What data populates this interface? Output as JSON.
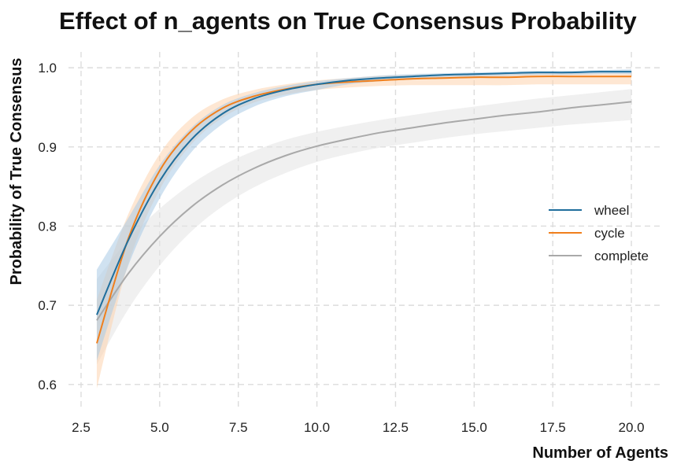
{
  "chart_data": {
    "type": "line",
    "title": "Effect of n_agents on True Consensus Probability",
    "xlabel": "Number of Agents",
    "ylabel": "Probability of True Consensus",
    "xlim": [
      2.1,
      20.9
    ],
    "ylim": [
      0.57,
      1.02
    ],
    "xticks": [
      2.5,
      5.0,
      7.5,
      10.0,
      12.5,
      15.0,
      17.5,
      20.0
    ],
    "xtick_labels": [
      "2.5",
      "5.0",
      "7.5",
      "10.0",
      "12.5",
      "15.0",
      "17.5",
      "20.0"
    ],
    "yticks": [
      0.6,
      0.7,
      0.8,
      0.9,
      1.0
    ],
    "ytick_labels": [
      "0.6",
      "0.7",
      "0.8",
      "0.9",
      "1.0"
    ],
    "grid": true,
    "legend_position": "right",
    "x": [
      3,
      4,
      5,
      6,
      7,
      8,
      9,
      10,
      11,
      12,
      13,
      14,
      15,
      16,
      17,
      18,
      19,
      20
    ],
    "series": [
      {
        "name": "wheel",
        "color": "#1f6e9c",
        "band_color": "#a9cbe6",
        "values": [
          0.688,
          0.782,
          0.857,
          0.909,
          0.942,
          0.961,
          0.972,
          0.979,
          0.984,
          0.987,
          0.989,
          0.991,
          0.992,
          0.993,
          0.994,
          0.994,
          0.995,
          0.995
        ],
        "lower": [
          0.63,
          0.75,
          0.835,
          0.893,
          0.929,
          0.951,
          0.964,
          0.972,
          0.979,
          0.983,
          0.986,
          0.988,
          0.989,
          0.99,
          0.991,
          0.991,
          0.992,
          0.992
        ],
        "upper": [
          0.745,
          0.81,
          0.877,
          0.924,
          0.953,
          0.968,
          0.977,
          0.983,
          0.987,
          0.99,
          0.992,
          0.993,
          0.994,
          0.995,
          0.996,
          0.996,
          0.997,
          0.998
        ]
      },
      {
        "name": "cycle",
        "color": "#f07f1c",
        "band_color": "#fdd4ae",
        "values": [
          0.652,
          0.784,
          0.87,
          0.92,
          0.949,
          0.964,
          0.973,
          0.979,
          0.982,
          0.984,
          0.986,
          0.987,
          0.988,
          0.988,
          0.989,
          0.989,
          0.989,
          0.989
        ],
        "lower": [
          0.595,
          0.752,
          0.846,
          0.903,
          0.937,
          0.956,
          0.966,
          0.972,
          0.975,
          0.977,
          0.978,
          0.978,
          0.978,
          0.978,
          0.979,
          0.979,
          0.979,
          0.979
        ],
        "upper": [
          0.707,
          0.815,
          0.891,
          0.936,
          0.96,
          0.972,
          0.979,
          0.984,
          0.987,
          0.99,
          0.991,
          0.992,
          0.993,
          0.993,
          0.993,
          0.993,
          0.993,
          0.993
        ]
      },
      {
        "name": "complete",
        "color": "#a9a9a9",
        "band_color": "#e3e3e3",
        "values": [
          0.681,
          0.74,
          0.787,
          0.824,
          0.852,
          0.873,
          0.889,
          0.901,
          0.91,
          0.918,
          0.924,
          0.93,
          0.935,
          0.94,
          0.944,
          0.949,
          0.953,
          0.957
        ],
        "lower": [
          0.625,
          0.695,
          0.75,
          0.793,
          0.825,
          0.849,
          0.867,
          0.881,
          0.891,
          0.899,
          0.905,
          0.911,
          0.916,
          0.92,
          0.924,
          0.928,
          0.931,
          0.934
        ],
        "upper": [
          0.733,
          0.783,
          0.822,
          0.853,
          0.877,
          0.895,
          0.909,
          0.919,
          0.927,
          0.934,
          0.94,
          0.946,
          0.951,
          0.956,
          0.961,
          0.965,
          0.969,
          0.973
        ]
      }
    ]
  }
}
